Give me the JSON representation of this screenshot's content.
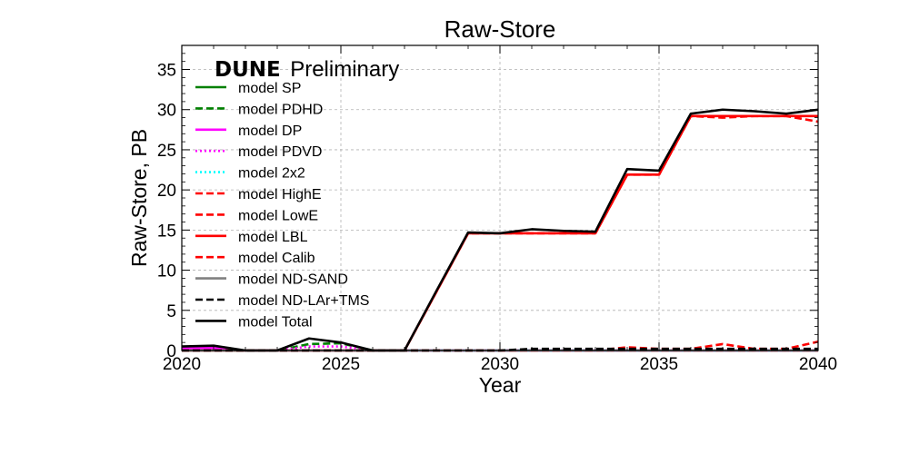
{
  "chart_data": {
    "type": "line",
    "title": "Raw-Store",
    "xlabel": "Year",
    "ylabel": "Raw-Store, PB",
    "xlim": [
      2020,
      2040
    ],
    "ylim": [
      0,
      38
    ],
    "xticks": [
      2020,
      2025,
      2030,
      2035,
      2040
    ],
    "yticks": [
      0,
      5,
      10,
      15,
      20,
      25,
      30,
      35
    ],
    "grid": true,
    "legend_position": "top-left",
    "annotation": {
      "bold": "DUNE",
      "text": "Preliminary"
    },
    "x": [
      2020,
      2021,
      2022,
      2023,
      2024,
      2025,
      2026,
      2027,
      2028,
      2029,
      2030,
      2031,
      2032,
      2033,
      2034,
      2035,
      2036,
      2037,
      2038,
      2039,
      2040
    ],
    "series": [
      {
        "name": "model SP",
        "color": "#008000",
        "dash": "solid",
        "values": [
          0,
          0,
          0,
          0,
          0,
          0,
          0,
          0,
          0,
          0,
          0,
          0,
          0,
          0,
          0,
          0,
          0,
          0,
          0,
          0,
          0
        ]
      },
      {
        "name": "model PDHD",
        "color": "#008000",
        "dash": "dashed",
        "values": [
          0,
          0,
          0,
          0,
          0.8,
          0.9,
          0,
          0,
          0,
          0,
          0,
          0,
          0,
          0,
          0,
          0,
          0,
          0,
          0,
          0,
          0
        ]
      },
      {
        "name": "model DP",
        "color": "#ff00ff",
        "dash": "solid",
        "values": [
          0.3,
          0.3,
          0,
          0,
          0,
          0,
          0,
          0,
          0,
          0,
          0,
          0,
          0,
          0,
          0,
          0,
          0,
          0,
          0,
          0,
          0
        ]
      },
      {
        "name": "model PDVD",
        "color": "#ff00ff",
        "dash": "dotted",
        "values": [
          0,
          0,
          0,
          0,
          0.5,
          0.5,
          0,
          0,
          0,
          0,
          0,
          0,
          0,
          0,
          0,
          0,
          0,
          0,
          0,
          0,
          0
        ]
      },
      {
        "name": "model 2x2",
        "color": "#00ffff",
        "dash": "dotted",
        "values": [
          0,
          0,
          0,
          0,
          0,
          0,
          0,
          0,
          0,
          0,
          0,
          0,
          0,
          0,
          0,
          0,
          0,
          0,
          0,
          0,
          0
        ]
      },
      {
        "name": "model HighE",
        "color": "#ff0000",
        "dash": "dashed",
        "values": [
          0,
          0,
          0,
          0,
          0,
          0,
          0,
          0,
          0,
          0,
          0,
          0,
          0,
          0,
          0.4,
          0.2,
          0.2,
          0.8,
          0.2,
          0.2,
          1.1
        ]
      },
      {
        "name": "model LowE",
        "color": "#ff0000",
        "dash": "dashed",
        "values": [
          0,
          0,
          0,
          0,
          0,
          0,
          0,
          0,
          0,
          0,
          0,
          0,
          0,
          0,
          0,
          0,
          0,
          0,
          0,
          0,
          0
        ]
      },
      {
        "name": "model LBL",
        "color": "#ff0000",
        "dash": "solid",
        "values": [
          0,
          0,
          0,
          0,
          0,
          0,
          0,
          0,
          7.3,
          14.6,
          14.6,
          14.6,
          14.6,
          14.6,
          21.9,
          21.9,
          29.2,
          29.2,
          29.2,
          29.2,
          29.2
        ]
      },
      {
        "name": "model Calib",
        "color": "#ff0000",
        "dash": "dashed",
        "values": [
          0,
          0,
          0,
          0,
          0,
          0,
          0,
          0,
          7.3,
          14.6,
          14.6,
          14.6,
          14.6,
          14.6,
          21.9,
          21.9,
          29.2,
          29.0,
          29.2,
          29.2,
          28.5
        ]
      },
      {
        "name": "model ND-SAND",
        "color": "#808080",
        "dash": "solid",
        "values": [
          0,
          0,
          0,
          0,
          0,
          0,
          0,
          0,
          0,
          0,
          0,
          0,
          0,
          0,
          0,
          0,
          0,
          0,
          0,
          0,
          0
        ]
      },
      {
        "name": "model ND-LAr+TMS",
        "color": "#000000",
        "dash": "dashed",
        "values": [
          0,
          0,
          0,
          0,
          0,
          0,
          0,
          0,
          0,
          0,
          0,
          0.2,
          0.2,
          0.2,
          0.2,
          0.2,
          0.2,
          0.2,
          0.2,
          0.2,
          0.2
        ]
      },
      {
        "name": "model Total",
        "color": "#000000",
        "dash": "solid",
        "values": [
          0.5,
          0.6,
          0,
          0,
          1.5,
          1.0,
          0,
          0,
          7.4,
          14.7,
          14.6,
          15.1,
          14.9,
          14.8,
          22.6,
          22.4,
          29.5,
          30.0,
          29.8,
          29.5,
          30.0
        ]
      }
    ]
  }
}
